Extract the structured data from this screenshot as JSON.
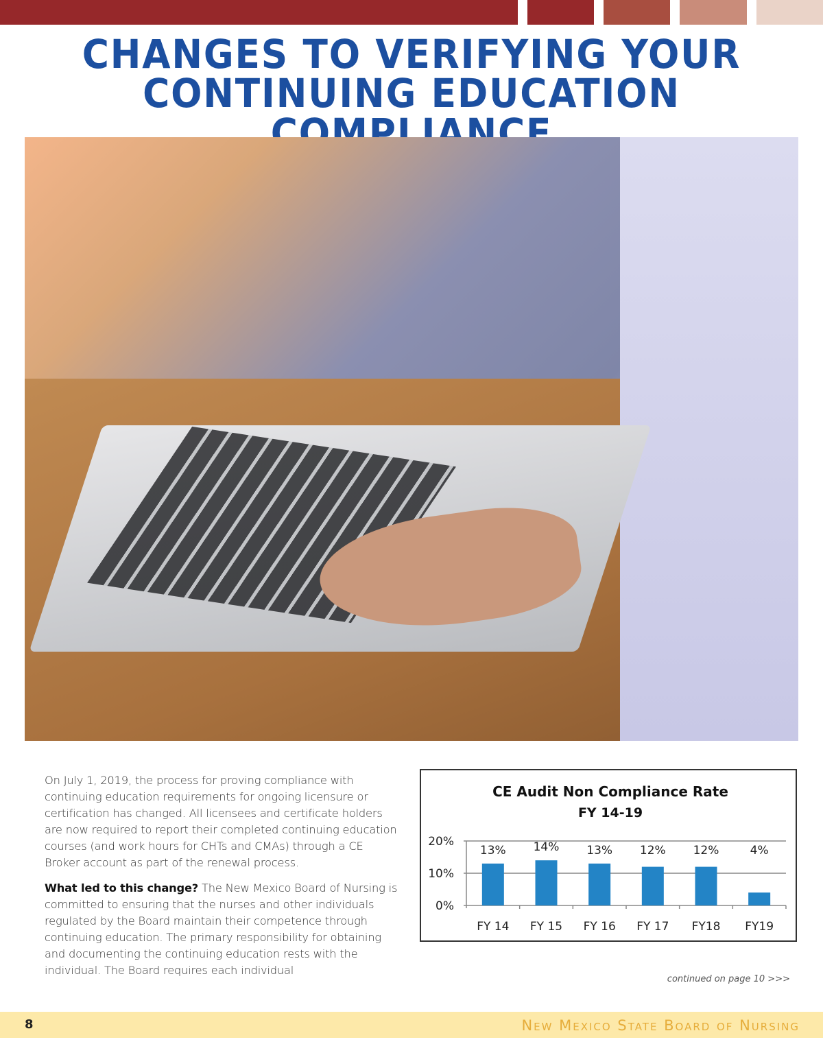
{
  "header": {
    "color_bars": [
      "#96282a",
      "#96282a",
      "#a84e40",
      "#c98c7a",
      "#ead3c8"
    ],
    "title_line1": "CHANGES TO VERIFYING YOUR",
    "title_line2": "CONTINUING EDUCATION COMPLIANCE"
  },
  "photo": {
    "subject": "nurse-typing-on-laptop"
  },
  "article": {
    "para1": "On July 1, 2019, the process for proving compliance with continuing education requirements for ongoing licensure or certification has changed. All licensees and certificate holders are now required to report their completed continuing education courses (and work hours for CHTs and CMAs) through a CE Broker account as part of the renewal process.",
    "para2_lead": "What led to this change?",
    "para2": " The New Mexico Board of Nursing is committed to ensuring that the nurses and other individuals regulated by the Board maintain their competence through continuing education. The primary responsibility for obtaining and documenting the continuing education rests with the individual. The Board requires each individual",
    "continued": "continued on page 10 >>>"
  },
  "chart_data": {
    "type": "bar",
    "title": "CE Audit Non Compliance Rate",
    "subtitle": "FY 14-19",
    "categories": [
      "FY 14",
      "FY 15",
      "FY 16",
      "FY 17",
      "FY18",
      "FY19"
    ],
    "values": [
      13,
      14,
      13,
      12,
      12,
      4
    ],
    "data_labels": [
      "13%",
      "14%",
      "13%",
      "12%",
      "12%",
      "4%"
    ],
    "yticks": [
      "0%",
      "10%",
      "20%"
    ],
    "ylim": [
      0,
      20
    ],
    "grid": true,
    "bar_color": "#2384c6"
  },
  "footer": {
    "page_number": "8",
    "publication": "New Mexico State Board of Nursing",
    "background": "#fde9a9"
  }
}
